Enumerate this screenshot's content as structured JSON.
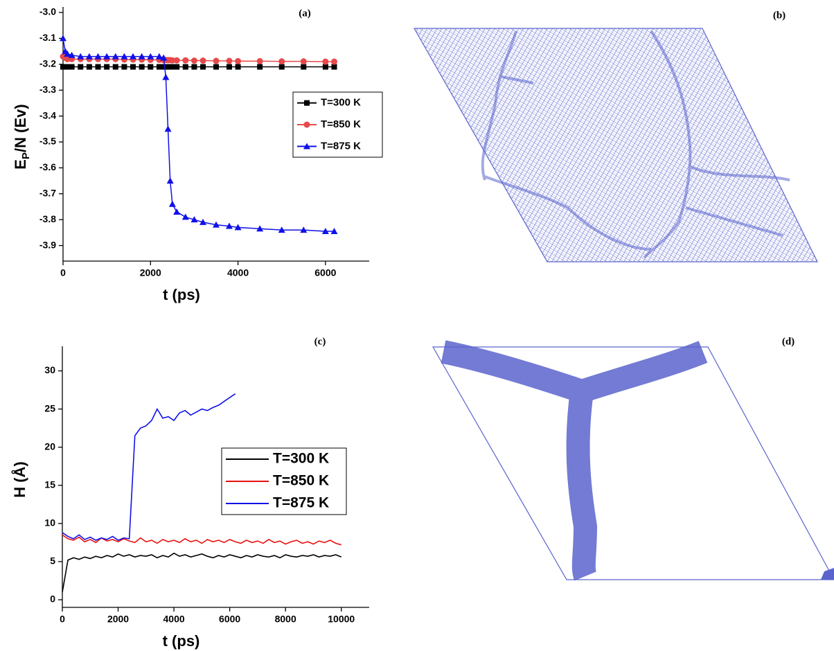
{
  "chart_data": [
    {
      "type": "line",
      "panel_label": "(a)",
      "xlabel": "t (ps)",
      "ylabel": {
        "text": "E",
        "sub": "P",
        "rest": "/N (Ev)"
      },
      "xlim": [
        0,
        7000
      ],
      "xticks": [
        0,
        2000,
        4000,
        6000
      ],
      "ylim": [
        -3.96,
        -3.0
      ],
      "yticks": [
        {
          "value": -3,
          "label": "-3.0"
        },
        -3.1,
        -3.2,
        -3.3,
        -3.4,
        -3.5,
        -3.6,
        -3.7,
        -3.8,
        -3.9
      ],
      "legend": "center right",
      "x": [
        0,
        50,
        100,
        200,
        400,
        600,
        800,
        1000,
        1200,
        1400,
        1600,
        1800,
        2000,
        2200,
        2300,
        2350,
        2400,
        2450,
        2500,
        2600,
        2800,
        3000,
        3200,
        3500,
        3800,
        4000,
        4500,
        5000,
        5500,
        6000,
        6200
      ],
      "series": [
        {
          "name": "T=300 K",
          "color": "#000000",
          "marker": "square",
          "values": [
            -3.21,
            -3.21,
            -3.21,
            -3.21,
            -3.21,
            -3.21,
            -3.21,
            -3.21,
            -3.21,
            -3.21,
            -3.21,
            -3.21,
            -3.21,
            -3.21,
            -3.21,
            -3.21,
            -3.21,
            -3.21,
            -3.21,
            -3.21,
            -3.21,
            -3.21,
            -3.21,
            -3.21,
            -3.21,
            -3.21,
            -3.21,
            -3.21,
            -3.21,
            -3.21,
            -3.21
          ]
        },
        {
          "name": "T=850 K",
          "color": "#e8494a",
          "marker": "circle",
          "values": [
            -3.17,
            -3.175,
            -3.18,
            -3.18,
            -3.18,
            -3.18,
            -3.18,
            -3.18,
            -3.18,
            -3.182,
            -3.182,
            -3.182,
            -3.183,
            -3.183,
            -3.184,
            -3.184,
            -3.184,
            -3.184,
            -3.185,
            -3.185,
            -3.185,
            -3.186,
            -3.186,
            -3.187,
            -3.187,
            -3.188,
            -3.188,
            -3.189,
            -3.189,
            -3.19,
            -3.19
          ]
        },
        {
          "name": "T=875 K",
          "color": "#1010e8",
          "marker": "triangle",
          "values": [
            -3.1,
            -3.15,
            -3.16,
            -3.165,
            -3.17,
            -3.17,
            -3.17,
            -3.17,
            -3.17,
            -3.17,
            -3.17,
            -3.17,
            -3.17,
            -3.17,
            -3.175,
            -3.25,
            -3.45,
            -3.65,
            -3.74,
            -3.77,
            -3.79,
            -3.8,
            -3.81,
            -3.82,
            -3.825,
            -3.83,
            -3.835,
            -3.84,
            -3.84,
            -3.845,
            -3.845
          ]
        }
      ]
    },
    {
      "type": "line",
      "panel_label": "(c)",
      "xlabel": "t (ps)",
      "ylabel": "H (Å)",
      "xlim": [
        0,
        11000
      ],
      "xticks": [
        0,
        2000,
        4000,
        6000,
        8000,
        10000
      ],
      "ylim": [
        -1,
        32.5
      ],
      "yticks": [
        0,
        5,
        10,
        15,
        20,
        25,
        30
      ],
      "legend": "lower right",
      "x": [
        0,
        200,
        400,
        600,
        800,
        1000,
        1200,
        1400,
        1600,
        1800,
        2000,
        2200,
        2400,
        2600,
        2800,
        3000,
        3200,
        3400,
        3600,
        3800,
        4000,
        4200,
        4400,
        4600,
        4800,
        5000,
        5200,
        5400,
        5600,
        5800,
        6000,
        6200,
        6400,
        6600,
        6800,
        7000,
        7200,
        7400,
        7600,
        7800,
        8000,
        8200,
        8400,
        8600,
        8800,
        9000,
        9200,
        9400,
        9600,
        9800,
        10000
      ],
      "series": [
        {
          "name": "T=300 K",
          "color": "#000000",
          "values": [
            1,
            5.2,
            5.5,
            5.3,
            5.6,
            5.4,
            5.7,
            5.5,
            5.8,
            5.6,
            6.0,
            5.7,
            5.9,
            5.6,
            5.8,
            5.7,
            5.9,
            5.5,
            5.8,
            5.6,
            6.1,
            5.7,
            5.9,
            5.6,
            5.8,
            6.0,
            5.7,
            5.5,
            5.8,
            5.6,
            5.9,
            5.7,
            5.5,
            5.8,
            5.6,
            5.9,
            5.7,
            5.6,
            5.8,
            5.5,
            5.9,
            5.7,
            5.6,
            5.8,
            5.7,
            5.9,
            5.6,
            5.8,
            5.7,
            5.9,
            5.6
          ]
        },
        {
          "name": "T=850 K",
          "color": "#e8100e",
          "values": [
            8.5,
            8.0,
            7.8,
            8.2,
            7.6,
            7.9,
            7.5,
            8.1,
            7.7,
            7.9,
            7.6,
            8.0,
            7.7,
            7.5,
            8.1,
            7.6,
            7.8,
            7.4,
            7.9,
            7.6,
            7.8,
            7.5,
            8.0,
            7.6,
            7.8,
            7.4,
            7.9,
            7.6,
            7.8,
            7.5,
            7.9,
            7.6,
            7.4,
            7.8,
            7.5,
            7.7,
            7.4,
            7.9,
            7.5,
            7.7,
            7.3,
            7.6,
            7.8,
            7.4,
            7.6,
            7.3,
            7.7,
            7.5,
            7.8,
            7.4,
            7.2
          ]
        },
        {
          "name": "T=875 K",
          "color": "#1010e8",
          "values": [
            8.8,
            8.3,
            8.0,
            8.5,
            7.9,
            8.2,
            7.8,
            8.1,
            7.9,
            8.3,
            7.8,
            8.1,
            8.0,
            21.5,
            22.5,
            22.8,
            23.5,
            25.0,
            23.8,
            24.0,
            23.5,
            24.5,
            24.8,
            24.2,
            24.6,
            25.0,
            24.8,
            25.2,
            25.5,
            26.0,
            26.5,
            27.0,
            null,
            null,
            null,
            null,
            null,
            null,
            null,
            null,
            null,
            null,
            null,
            null,
            null,
            null,
            null,
            null,
            null,
            null,
            null
          ]
        }
      ]
    }
  ],
  "images": [
    {
      "label": "(b)"
    },
    {
      "label": "(d)"
    }
  ]
}
